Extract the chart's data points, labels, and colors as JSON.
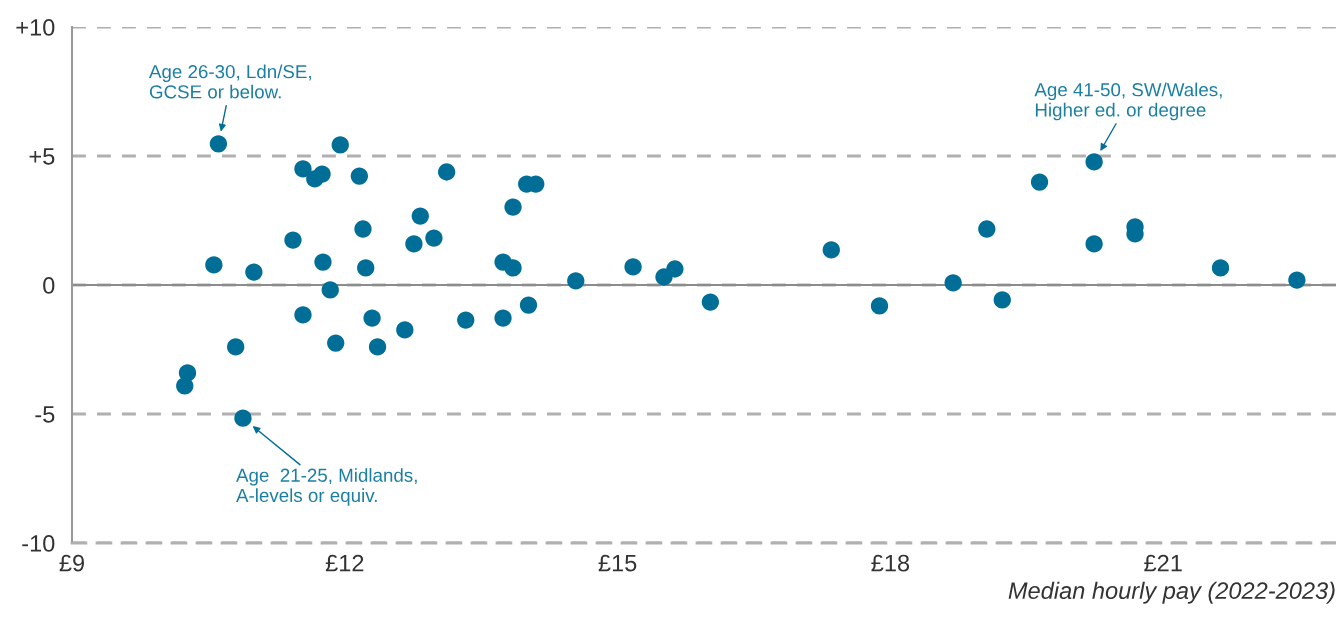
{
  "chart_data": {
    "type": "scatter",
    "xlabel": "Median hourly pay (2022-2023)",
    "x": [
      10.61,
      10.56,
      11.0,
      11.43,
      11.54,
      11.67,
      11.75,
      11.95,
      12.16,
      12.2,
      12.23,
      11.76,
      11.84,
      11.54,
      11.9,
      12.3,
      12.36,
      12.66,
      10.8,
      10.27,
      10.24,
      10.88,
      12.76,
      12.83,
      12.98,
      13.12,
      13.33,
      14.0,
      14.1,
      13.85,
      13.74,
      13.85,
      14.54,
      15.17,
      15.51,
      15.63,
      16.02,
      17.35,
      17.88,
      13.74,
      14.02,
      18.69,
      19.23,
      19.06,
      19.64,
      20.24,
      20.24,
      20.69,
      20.69,
      21.63,
      22.47
    ],
    "series": [
      {
        "color": "#006e96",
        "values": [
          5.47,
          0.78,
          0.5,
          1.74,
          4.5,
          4.11,
          4.3,
          5.43,
          4.22,
          2.17,
          0.66,
          0.89,
          -0.19,
          -1.16,
          -2.25,
          -1.28,
          -2.4,
          -1.74,
          -2.4,
          -3.41,
          -3.91,
          -5.16,
          1.59,
          2.67,
          1.82,
          4.38,
          -1.36,
          3.91,
          3.91,
          3.02,
          0.89,
          0.66,
          0.16,
          0.7,
          0.31,
          0.62,
          -0.66,
          1.36,
          -0.81,
          -1.28,
          -0.78,
          0.08,
          -0.58,
          2.17,
          3.99,
          4.77,
          1.59,
          2.25,
          1.98,
          0.66,
          0.19
        ]
      }
    ],
    "marker": "circle",
    "xlim": [
      9,
      22.9
    ],
    "xticks": [
      {
        "value": 9,
        "label": "£9"
      },
      {
        "value": 12,
        "label": "£12"
      },
      {
        "value": 15,
        "label": "£15"
      },
      {
        "value": 18,
        "label": "£18"
      },
      {
        "value": 21,
        "label": "£21"
      }
    ],
    "ylim": [
      -10,
      10
    ],
    "yticks": [
      {
        "value": 10,
        "label": "+10"
      },
      {
        "value": 5,
        "label": "+5"
      },
      0,
      -5,
      -10
    ],
    "grid": "y",
    "ref_lines": [
      {
        "axis": "y",
        "value": 0,
        "color": "#8c8c8c",
        "line_style": "solid"
      }
    ],
    "annotations": [
      {
        "text": "Age 26-30, Ldn/SE,\nGCSE or below.",
        "x": 10.61,
        "y": 5.47
      },
      {
        "text": "Age  21-25, Midlands,\nA-levels or equiv.",
        "x": 10.88,
        "y": -5.16
      },
      {
        "text": "Age 41-50, SW/Wales,\nHigher ed. or degree",
        "x": 20.24,
        "y": 4.77
      }
    ],
    "legend": false
  }
}
